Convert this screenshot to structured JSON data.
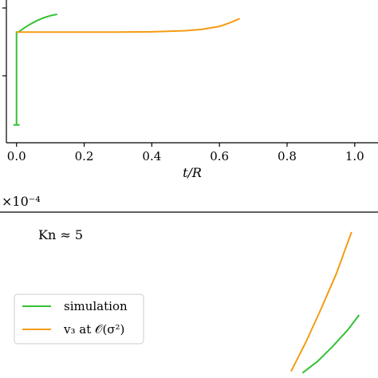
{
  "chart_data": [
    {
      "type": "line",
      "panel": "top",
      "xlabel": "t/R",
      "xlim": [
        -0.03,
        1.05
      ],
      "x_ticks": [
        "0.0",
        "0.2",
        "0.4",
        "0.6",
        "0.8",
        "1.0"
      ],
      "x_tick_values": [
        0.0,
        0.2,
        0.4,
        0.6,
        0.8,
        1.0
      ],
      "series": [
        {
          "color": "#33c233",
          "x": [
            0.0,
            0.0,
            0.005,
            0.02,
            0.04,
            0.06,
            0.08,
            0.1,
            0.12
          ],
          "y": [
            -0.75,
            0.55,
            0.55,
            0.6,
            0.66,
            0.71,
            0.75,
            0.78,
            0.8
          ]
        },
        {
          "color": "#f39c12",
          "x": [
            0.0,
            0.1,
            0.2,
            0.3,
            0.4,
            0.5,
            0.55,
            0.6,
            0.63,
            0.66
          ],
          "y": [
            0.55,
            0.55,
            0.55,
            0.55,
            0.555,
            0.57,
            0.59,
            0.63,
            0.68,
            0.74
          ]
        }
      ]
    },
    {
      "type": "line",
      "panel": "bottom",
      "scale_note": "×10⁻⁴",
      "annotation": "Kn ≈ 5",
      "legend_position": "center-left",
      "series": [
        {
          "name": "simulation",
          "color": "#33c233",
          "x": [
            0.8,
            0.84,
            0.88,
            0.92,
            0.95
          ],
          "y": [
            0.03,
            0.1,
            0.19,
            0.29,
            0.38
          ]
        },
        {
          "name": "v₃ at 𝒪(σ²)",
          "color": "#f39c12",
          "x": [
            0.77,
            0.81,
            0.85,
            0.89,
            0.93
          ],
          "y": [
            0.04,
            0.22,
            0.42,
            0.63,
            0.88
          ]
        }
      ]
    }
  ]
}
